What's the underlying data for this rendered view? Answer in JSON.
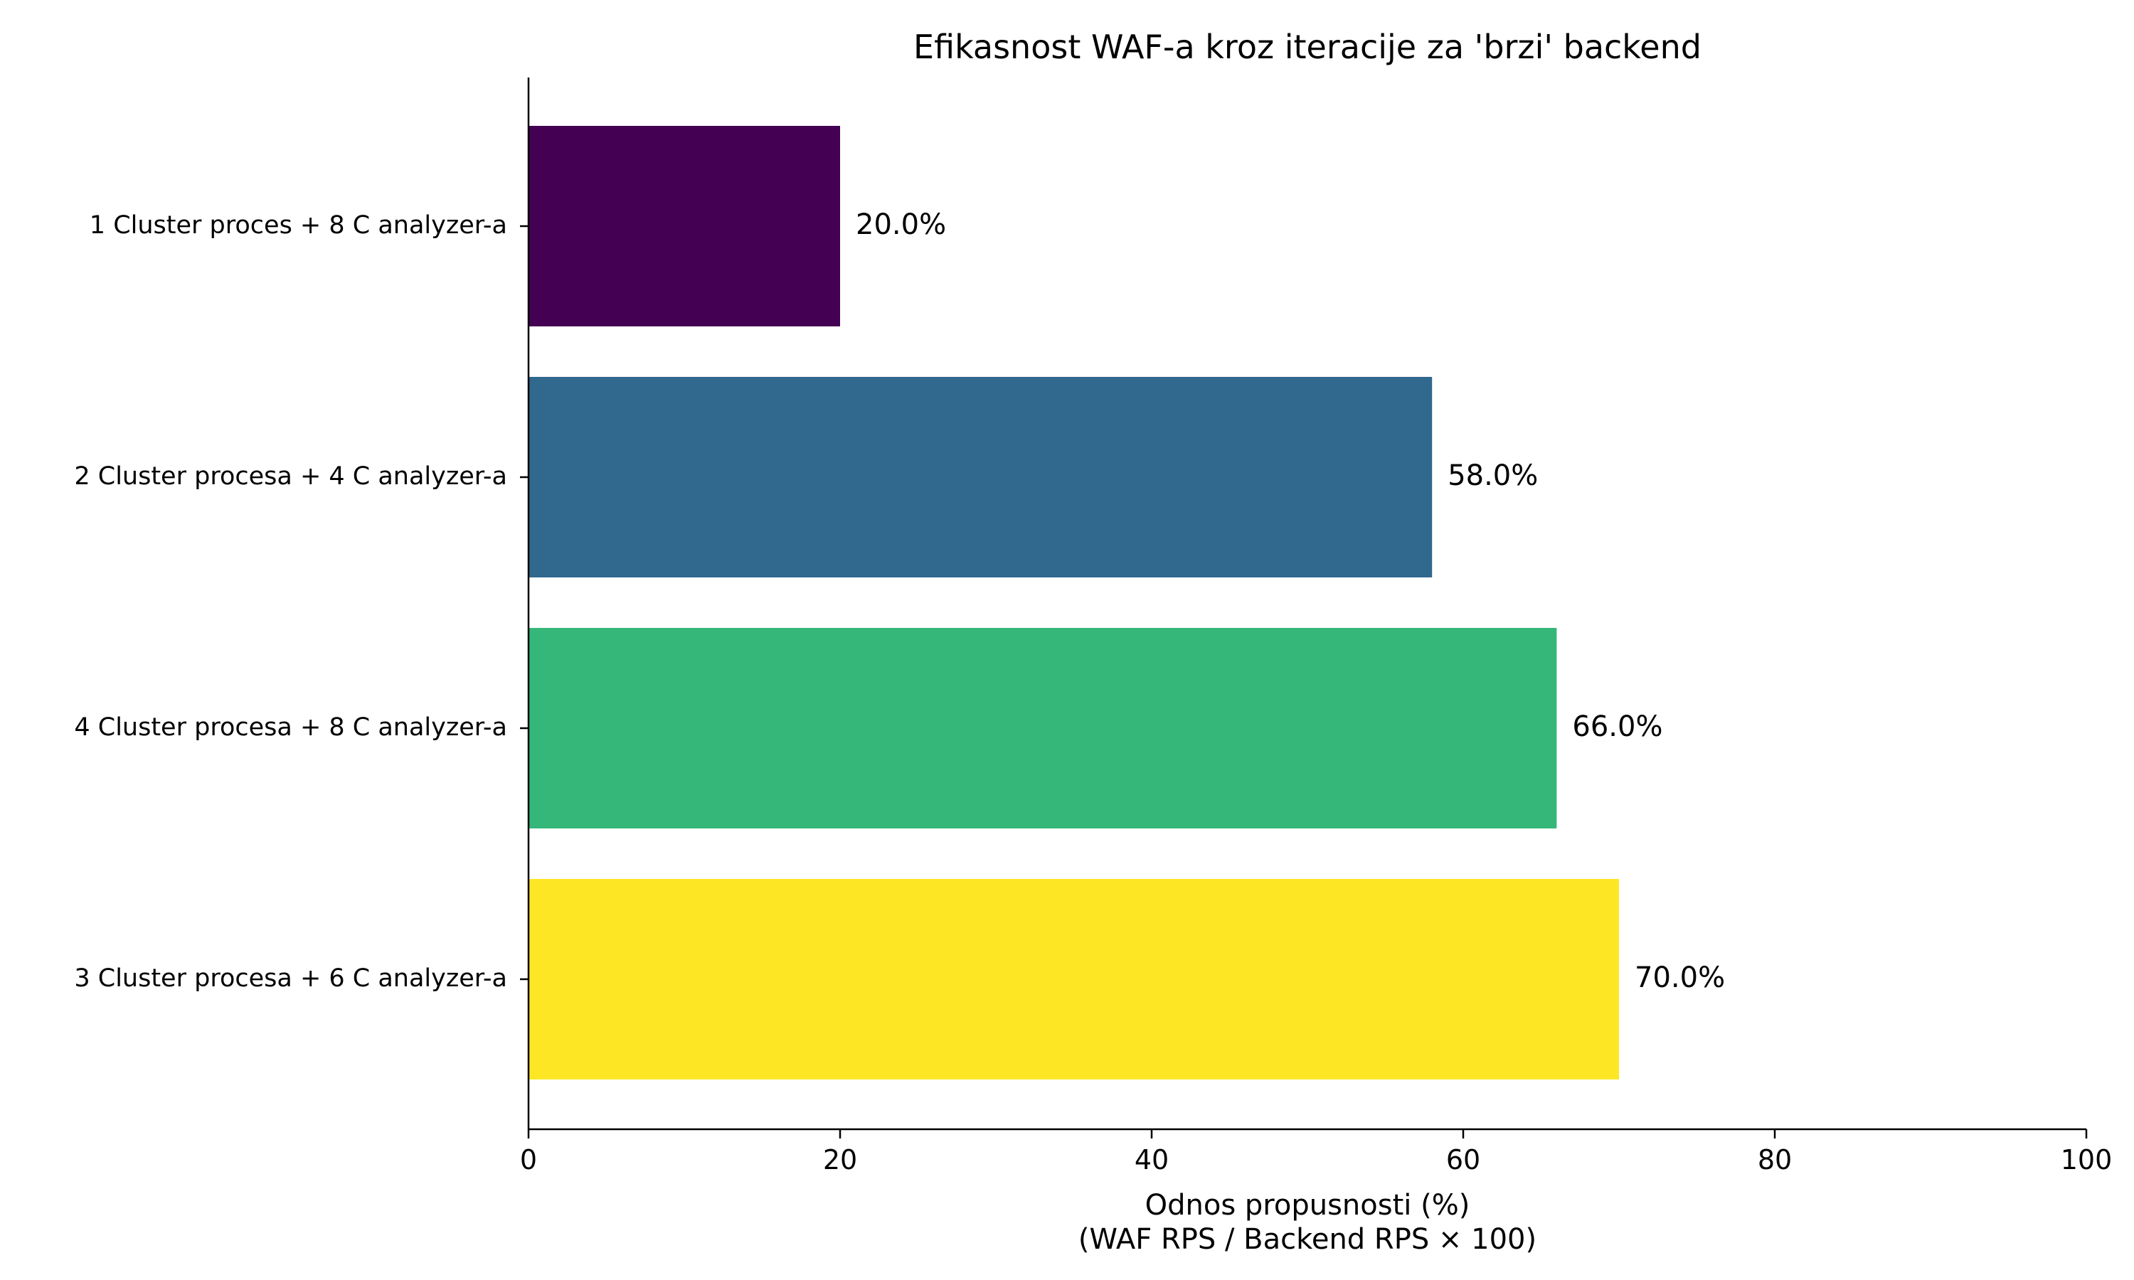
{
  "chart_data": {
    "type": "bar",
    "orientation": "horizontal",
    "title": "Efikasnost WAF-a kroz iteracije za 'brzi' backend",
    "xlabel_lines": [
      "Odnos propusnosti (%)",
      "(WAF RPS / Backend RPS × 100)"
    ],
    "ylabel": "",
    "xlim": [
      0,
      100
    ],
    "xticks": [
      0,
      20,
      40,
      60,
      80,
      100
    ],
    "xtick_labels": [
      "0",
      "20",
      "40",
      "60",
      "80",
      "100"
    ],
    "categories": [
      "1 Cluster proces + 8 C analyzer-a",
      "2 Cluster procesa + 4 C analyzer-a",
      "4 Cluster procesa + 8 C analyzer-a",
      "3 Cluster procesa + 6 C analyzer-a"
    ],
    "values": [
      20.0,
      58.0,
      66.0,
      70.0
    ],
    "value_labels": [
      "20.0%",
      "58.0%",
      "66.0%",
      "70.0%"
    ],
    "colors": [
      "#440154",
      "#31688e",
      "#35b779",
      "#fde725"
    ],
    "grid": false,
    "legend": "none"
  }
}
